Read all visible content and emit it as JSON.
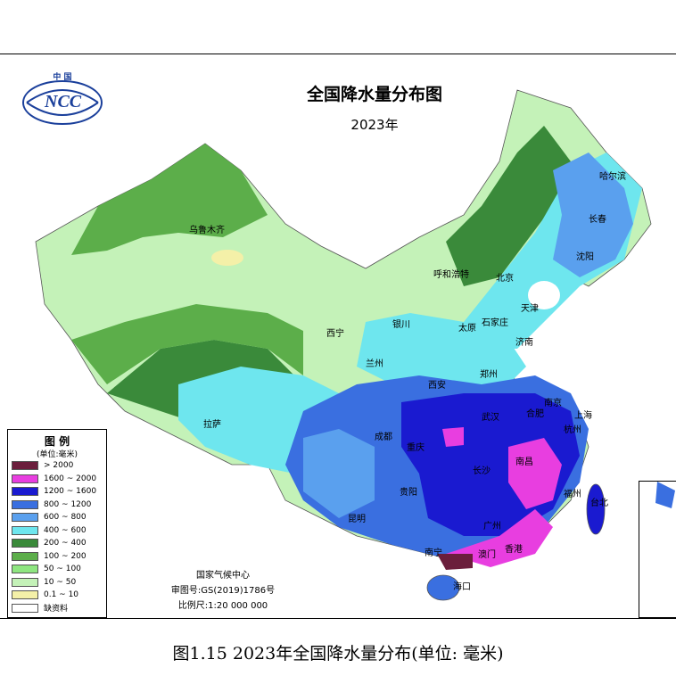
{
  "logo": {
    "top_text": "中 国",
    "acronym": "NCC"
  },
  "title": "全国降水量分布图",
  "subtitle": "2023年",
  "legend": {
    "title": "图 例",
    "unit": "(单位:毫米)",
    "items": [
      {
        "label": "> 2000",
        "color": "#6b1e3c"
      },
      {
        "label": "1600 ~ 2000",
        "color": "#e83ee0"
      },
      {
        "label": "1200 ~ 1600",
        "color": "#1a1ad0"
      },
      {
        "label": "800 ~ 1200",
        "color": "#3a6fe0"
      },
      {
        "label": "600 ~ 800",
        "color": "#5aa0ee"
      },
      {
        "label": "400 ~ 600",
        "color": "#6ee6ee"
      },
      {
        "label": "200 ~ 400",
        "color": "#3a8a3a"
      },
      {
        "label": "100 ~ 200",
        "color": "#5cae4a"
      },
      {
        "label": "50 ~ 100",
        "color": "#8ee680"
      },
      {
        "label": "10 ~ 50",
        "color": "#c4f2b8"
      },
      {
        "label": "0.1 ~ 10",
        "color": "#f4f0a8"
      },
      {
        "label": "缺资料",
        "color": "#ffffff"
      }
    ]
  },
  "credits": {
    "org": "国家气候中心",
    "approval": "审图号:GS(2019)1786号",
    "scale": "比例尺:1:20 000 000"
  },
  "cities": [
    {
      "name": "哈尔滨"
    },
    {
      "name": "长春"
    },
    {
      "name": "沈阳"
    },
    {
      "name": "乌鲁木齐"
    },
    {
      "name": "呼和浩特"
    },
    {
      "name": "北京"
    },
    {
      "name": "天津"
    },
    {
      "name": "石家庄"
    },
    {
      "name": "太原"
    },
    {
      "name": "济南"
    },
    {
      "name": "银川"
    },
    {
      "name": "西宁"
    },
    {
      "name": "兰州"
    },
    {
      "name": "郑州"
    },
    {
      "name": "西安"
    },
    {
      "name": "南京"
    },
    {
      "name": "合肥"
    },
    {
      "name": "上海"
    },
    {
      "name": "杭州"
    },
    {
      "name": "武汉"
    },
    {
      "name": "成都"
    },
    {
      "name": "重庆"
    },
    {
      "name": "长沙"
    },
    {
      "name": "南昌"
    },
    {
      "name": "福州"
    },
    {
      "name": "台北"
    },
    {
      "name": "拉萨"
    },
    {
      "name": "贵阳"
    },
    {
      "name": "昆明"
    },
    {
      "name": "广州"
    },
    {
      "name": "南宁"
    },
    {
      "name": "澳门"
    },
    {
      "name": "香港"
    },
    {
      "name": "海口"
    }
  ],
  "caption": "图1.15 2023年全国降水量分布(单位: 毫米)"
}
